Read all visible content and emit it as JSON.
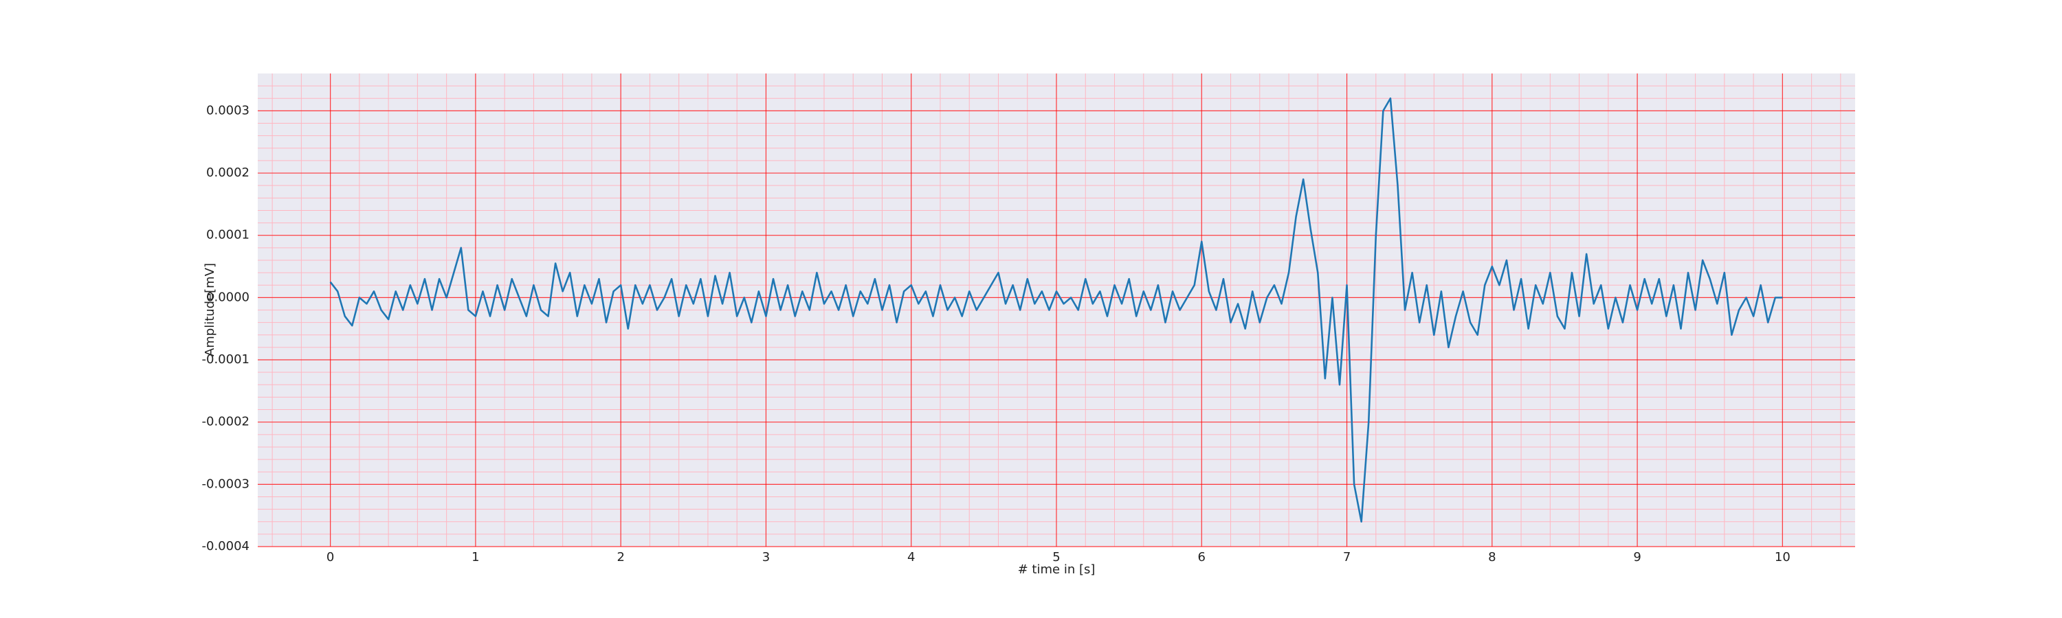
{
  "chart_data": {
    "type": "line",
    "xlabel": "# time in [s]",
    "ylabel": "Amplitude[mV]",
    "color": "#1f77b4",
    "grid": true,
    "minor_grid": true,
    "grid_color": "#ff0000",
    "minor_grid_color": "#ffb6c1",
    "background": "#eaeaf2",
    "xlim": [
      -0.5,
      10.5
    ],
    "ylim": [
      -0.0004,
      0.00036
    ],
    "xticks": [
      0,
      1,
      2,
      3,
      4,
      5,
      6,
      7,
      8,
      9,
      10
    ],
    "yticks": [
      -0.0004,
      -0.0003,
      -0.0002,
      -0.0001,
      {
        "value": 0,
        "label": "0.0000"
      },
      0.0001,
      0.0002,
      0.0003
    ],
    "x": [
      0,
      0.05,
      0.1,
      0.15,
      0.2,
      0.25,
      0.3,
      0.35,
      0.4,
      0.45,
      0.5,
      0.55,
      0.6,
      0.65,
      0.7,
      0.75,
      0.8,
      0.85,
      0.9,
      0.95,
      1,
      1.05,
      1.1,
      1.15,
      1.2,
      1.25,
      1.3,
      1.35,
      1.4,
      1.45,
      1.5,
      1.55,
      1.6,
      1.65,
      1.7,
      1.75,
      1.8,
      1.85,
      1.9,
      1.95,
      2,
      2.05,
      2.1,
      2.15,
      2.2,
      2.25,
      2.3,
      2.35,
      2.4,
      2.45,
      2.5,
      2.55,
      2.6,
      2.65,
      2.7,
      2.75,
      2.8,
      2.85,
      2.9,
      2.95,
      3,
      3.05,
      3.1,
      3.15,
      3.2,
      3.25,
      3.3,
      3.35,
      3.4,
      3.45,
      3.5,
      3.55,
      3.6,
      3.65,
      3.7,
      3.75,
      3.8,
      3.85,
      3.9,
      3.95,
      4,
      4.05,
      4.1,
      4.15,
      4.2,
      4.25,
      4.3,
      4.35,
      4.4,
      4.45,
      4.5,
      4.55,
      4.6,
      4.65,
      4.7,
      4.75,
      4.8,
      4.85,
      4.9,
      4.95,
      5,
      5.05,
      5.1,
      5.15,
      5.2,
      5.25,
      5.3,
      5.35,
      5.4,
      5.45,
      5.5,
      5.55,
      5.6,
      5.65,
      5.7,
      5.75,
      5.8,
      5.85,
      5.9,
      5.95,
      6,
      6.05,
      6.1,
      6.15,
      6.2,
      6.25,
      6.3,
      6.35,
      6.4,
      6.45,
      6.5,
      6.55,
      6.6,
      6.65,
      6.7,
      6.75,
      6.8,
      6.85,
      6.9,
      6.95,
      7,
      7.05,
      7.1,
      7.15,
      7.2,
      7.25,
      7.3,
      7.35,
      7.4,
      7.45,
      7.5,
      7.55,
      7.6,
      7.65,
      7.7,
      7.75,
      7.8,
      7.85,
      7.9,
      7.95,
      8,
      8.05,
      8.1,
      8.15,
      8.2,
      8.25,
      8.3,
      8.35,
      8.4,
      8.45,
      8.5,
      8.55,
      8.6,
      8.65,
      8.7,
      8.75,
      8.8,
      8.85,
      8.9,
      8.95,
      9,
      9.05,
      9.1,
      9.15,
      9.2,
      9.25,
      9.3,
      9.35,
      9.4,
      9.45,
      9.5,
      9.55,
      9.6,
      9.65,
      9.7,
      9.75,
      9.8,
      9.85,
      9.9,
      9.95,
      10
    ],
    "values": [
      2.5e-05,
      1e-05,
      -3e-05,
      -4.5e-05,
      0,
      -1e-05,
      1e-05,
      -2e-05,
      -3.5e-05,
      1e-05,
      -2e-05,
      2e-05,
      -1e-05,
      3e-05,
      -2e-05,
      3e-05,
      0,
      4e-05,
      8e-05,
      -2e-05,
      -3e-05,
      1e-05,
      -3e-05,
      2e-05,
      -2e-05,
      3e-05,
      0,
      -3e-05,
      2e-05,
      -2e-05,
      -3e-05,
      5.5e-05,
      1e-05,
      4e-05,
      -3e-05,
      2e-05,
      -1e-05,
      3e-05,
      -4e-05,
      1e-05,
      2e-05,
      -5e-05,
      2e-05,
      -1e-05,
      2e-05,
      -2e-05,
      0,
      3e-05,
      -3e-05,
      2e-05,
      -1e-05,
      3e-05,
      -3e-05,
      3.5e-05,
      -1e-05,
      4e-05,
      -3e-05,
      0,
      -4e-05,
      1e-05,
      -3e-05,
      3e-05,
      -2e-05,
      2e-05,
      -3e-05,
      1e-05,
      -2e-05,
      4e-05,
      -1e-05,
      1e-05,
      -2e-05,
      2e-05,
      -3e-05,
      1e-05,
      -1e-05,
      3e-05,
      -2e-05,
      2e-05,
      -4e-05,
      1e-05,
      2e-05,
      -1e-05,
      1e-05,
      -3e-05,
      2e-05,
      -2e-05,
      0,
      -3e-05,
      1e-05,
      -2e-05,
      0,
      2e-05,
      4e-05,
      -1e-05,
      2e-05,
      -2e-05,
      3e-05,
      -1e-05,
      1e-05,
      -2e-05,
      1e-05,
      -1e-05,
      0,
      -2e-05,
      3e-05,
      -1e-05,
      1e-05,
      -3e-05,
      2e-05,
      -1e-05,
      3e-05,
      -3e-05,
      1e-05,
      -2e-05,
      2e-05,
      -4e-05,
      1e-05,
      -2e-05,
      0,
      2e-05,
      9e-05,
      1e-05,
      -2e-05,
      3e-05,
      -4e-05,
      -1e-05,
      -5e-05,
      1e-05,
      -4e-05,
      0,
      2e-05,
      -1e-05,
      4e-05,
      0.00013,
      0.00019,
      0.00011,
      4e-05,
      -0.00013,
      0,
      -0.00014,
      2e-05,
      -0.0003,
      -0.00036,
      -0.0002,
      0.0001,
      0.0003,
      0.00032,
      0.00018,
      -2e-05,
      4e-05,
      -4e-05,
      2e-05,
      -6e-05,
      1e-05,
      -8e-05,
      -3e-05,
      1e-05,
      -4e-05,
      -6e-05,
      2e-05,
      5e-05,
      2e-05,
      6e-05,
      -2e-05,
      3e-05,
      -5e-05,
      2e-05,
      -1e-05,
      4e-05,
      -3e-05,
      -5e-05,
      4e-05,
      -3e-05,
      7e-05,
      -1e-05,
      2e-05,
      -5e-05,
      0,
      -4e-05,
      2e-05,
      -2e-05,
      3e-05,
      -1e-05,
      3e-05,
      -3e-05,
      2e-05,
      -5e-05,
      4e-05,
      -2e-05,
      6e-05,
      3e-05,
      -1e-05,
      4e-05,
      -6e-05,
      -2e-05,
      0,
      -3e-05,
      2e-05,
      -4e-05,
      0,
      0
    ]
  }
}
